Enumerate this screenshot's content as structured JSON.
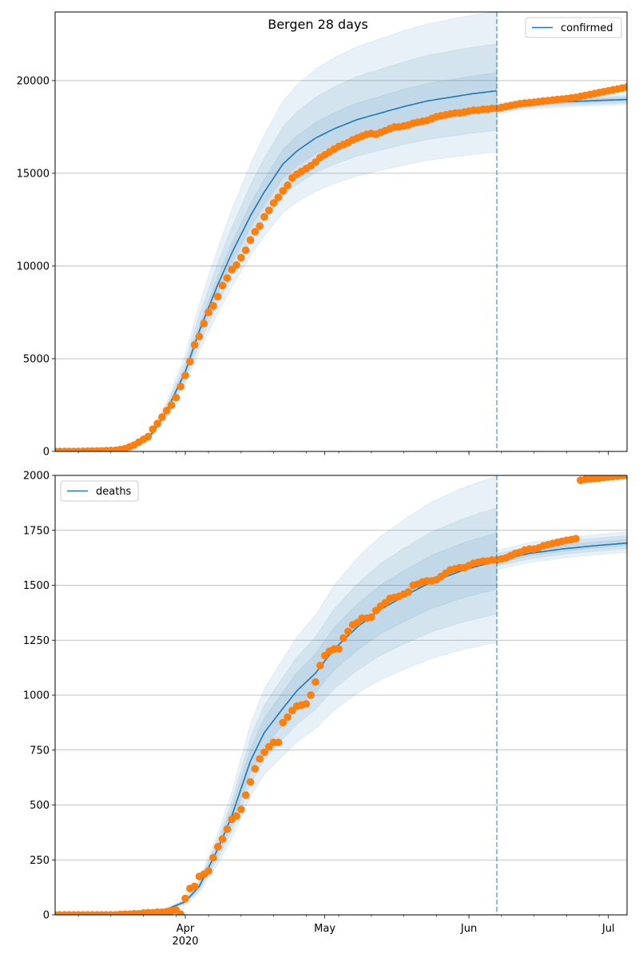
{
  "title": "Bergen 28 days",
  "x_axis": {
    "start_date": "2020-03-04",
    "xlim_days": [
      0,
      123
    ],
    "split_day": 95,
    "major_ticks": [
      {
        "day": 28,
        "label": "Apr",
        "sublabel": "2020"
      },
      {
        "day": 58,
        "label": "May",
        "sublabel": ""
      },
      {
        "day": 89,
        "label": "Jun",
        "sublabel": ""
      },
      {
        "day": 119,
        "label": "Jul",
        "sublabel": ""
      }
    ],
    "minor_tick_start_day": 5,
    "minor_tick_step_days": 7
  },
  "colors": {
    "model": "#1f77b4",
    "observed": "#ff7f0e",
    "grid": "#b0b0b0"
  },
  "chart_data": [
    {
      "type": "line",
      "legend": "confirmed",
      "legend_position": "top-right",
      "ylim": [
        0,
        23700
      ],
      "yticks": [
        0,
        5000,
        10000,
        15000,
        20000
      ],
      "grid": true,
      "observed": [
        0,
        0,
        0,
        0,
        0,
        5,
        10,
        15,
        20,
        25,
        30,
        40,
        50,
        60,
        100,
        150,
        250,
        350,
        500,
        650,
        800,
        1200,
        1500,
        1850,
        2200,
        2500,
        2900,
        3500,
        4100,
        4850,
        5750,
        6200,
        6900,
        7500,
        7850,
        8350,
        8950,
        9350,
        9800,
        10050,
        10450,
        10850,
        11400,
        11850,
        12150,
        12650,
        13000,
        13400,
        13700,
        14050,
        14350,
        14750,
        14950,
        15100,
        15250,
        15400,
        15600,
        15850,
        16000,
        16150,
        16300,
        16450,
        16550,
        16650,
        16800,
        16900,
        17000,
        17100,
        17150,
        17100,
        17200,
        17300,
        17400,
        17500,
        17500,
        17550,
        17600,
        17700,
        17750,
        17800,
        17850,
        17950,
        18050,
        18100,
        18150,
        18200,
        18250,
        18250,
        18300,
        18350,
        18400,
        18400,
        18450,
        18450,
        18500,
        18500,
        18550,
        18600,
        18650,
        18700,
        18750,
        18780,
        18800,
        18830,
        18860,
        18900,
        18920,
        18950,
        18980,
        19000,
        19030,
        19060,
        19100,
        19150,
        19200,
        19250,
        19300,
        19350,
        19400,
        19450,
        19500,
        19550,
        19600,
        19650
      ],
      "model_fit": {
        "days": [
          0,
          14,
          18,
          21,
          24,
          28,
          31,
          35,
          38,
          42,
          45,
          49,
          52,
          56,
          60,
          65,
          70,
          75,
          80,
          85,
          90,
          95
        ],
        "values": [
          0,
          80,
          400,
          1000,
          2200,
          4300,
          6500,
          9000,
          10700,
          12700,
          14000,
          15500,
          16200,
          16900,
          17400,
          17900,
          18250,
          18600,
          18900,
          19100,
          19300,
          19450
        ]
      },
      "model_forecast": {
        "days": [
          95,
          102,
          109,
          116,
          123
        ],
        "values": [
          18500,
          18750,
          18850,
          18920,
          18980
        ]
      },
      "bands_fit": [
        {
          "lower": 0.83,
          "upper": 1.22
        },
        {
          "lower": 0.89,
          "upper": 1.13
        },
        {
          "lower": 0.95,
          "upper": 1.05
        }
      ],
      "bands_forecast": [
        {
          "lower": 0.985,
          "upper": 1.015
        },
        {
          "lower": 0.99,
          "upper": 1.01
        },
        {
          "lower": 0.995,
          "upper": 1.005
        }
      ]
    },
    {
      "type": "line",
      "legend": "deaths",
      "legend_position": "top-left",
      "ylim": [
        0,
        2000
      ],
      "yticks": [
        0,
        250,
        500,
        750,
        1000,
        1250,
        1500,
        1750,
        2000
      ],
      "grid": true,
      "observed": [
        0,
        0,
        0,
        0,
        0,
        0,
        0,
        0,
        0,
        0,
        0,
        0,
        0,
        0,
        2,
        3,
        3,
        5,
        5,
        8,
        10,
        10,
        12,
        12,
        15,
        18,
        22,
        3,
        75,
        120,
        130,
        175,
        185,
        200,
        260,
        310,
        345,
        390,
        435,
        450,
        480,
        545,
        605,
        665,
        710,
        740,
        765,
        785,
        785,
        875,
        900,
        930,
        950,
        955,
        960,
        1000,
        1060,
        1135,
        1180,
        1200,
        1210,
        1210,
        1260,
        1290,
        1320,
        1330,
        1350,
        1350,
        1355,
        1385,
        1405,
        1420,
        1440,
        1445,
        1450,
        1460,
        1470,
        1500,
        1505,
        1515,
        1520,
        1520,
        1525,
        1540,
        1555,
        1570,
        1575,
        1580,
        1580,
        1590,
        1600,
        1605,
        1610,
        1610,
        1615,
        1615,
        1620,
        1625,
        1635,
        1645,
        1650,
        1660,
        1665,
        1665,
        1670,
        1680,
        1685,
        1690,
        1695,
        1700,
        1705,
        1708,
        1712,
        1978,
        1982,
        1984,
        1986,
        1988,
        1990,
        1993,
        1995,
        1997,
        1999,
        2000
      ],
      "model_fit": {
        "days": [
          0,
          21,
          24,
          28,
          31,
          35,
          38,
          42,
          45,
          49,
          52,
          56,
          60,
          65,
          70,
          75,
          81,
          88,
          95
        ],
        "values": [
          0,
          10,
          25,
          60,
          130,
          300,
          450,
          700,
          830,
          940,
          1020,
          1100,
          1210,
          1310,
          1390,
          1450,
          1516,
          1570,
          1611
        ]
      },
      "model_forecast": {
        "days": [
          95,
          102,
          109,
          116,
          123
        ],
        "values": [
          1611,
          1645,
          1665,
          1680,
          1692
        ]
      },
      "bands_fit": [
        {
          "lower": 0.77,
          "upper": 1.24
        },
        {
          "lower": 0.85,
          "upper": 1.15
        },
        {
          "lower": 0.92,
          "upper": 1.08
        }
      ],
      "bands_forecast": [
        {
          "lower": 0.975,
          "upper": 1.03
        },
        {
          "lower": 0.985,
          "upper": 1.02
        },
        {
          "lower": 0.993,
          "upper": 1.01
        }
      ]
    }
  ]
}
